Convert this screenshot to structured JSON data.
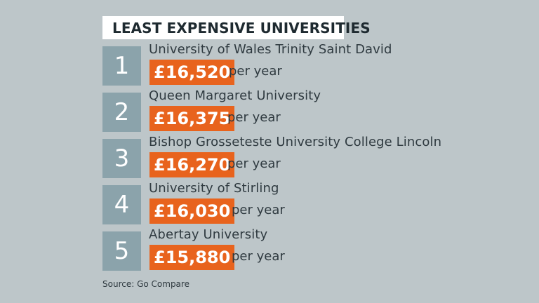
{
  "title": "LEAST EXPENSIVE UNIVERSITIES",
  "unit_label": "per year",
  "rankings": [
    {
      "rank": "1",
      "name": "University of Wales Trinity Saint David",
      "price": "£16,520"
    },
    {
      "rank": "2",
      "name": "Queen Margaret University",
      "price": "£16,375"
    },
    {
      "rank": "3",
      "name": "Bishop Grosseteste University College Lincoln",
      "price": "£16,270"
    },
    {
      "rank": "4",
      "name": "University of Stirling",
      "price": "£16,030"
    },
    {
      "rank": "5",
      "name": "Abertay University",
      "price": "£15,880"
    }
  ],
  "source": "Source: Go Compare",
  "colors": {
    "background": "#bdc6c9",
    "rank_box": "#8ba3ab",
    "price_box": "#e8631d",
    "title_box": "#ffffff"
  }
}
